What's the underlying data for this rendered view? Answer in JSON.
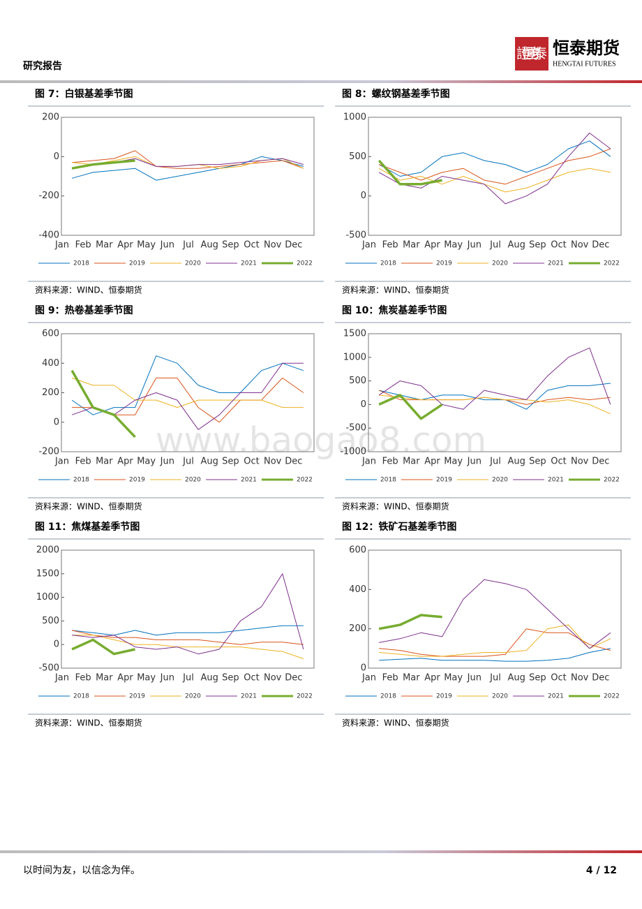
{
  "header": {
    "title": "研究报告",
    "logo_seal": "證恒券泰",
    "logo_name": "恒泰期货",
    "logo_en": "HENGTAI FUTURES"
  },
  "watermark": "www.baogao8.com",
  "chart_data": [
    {
      "type": "line",
      "title": "图 7：白银基差季节图",
      "source": "资料来源：WIND、恒泰期货",
      "categories": [
        "Jan",
        "Feb",
        "Mar",
        "Apr",
        "May",
        "Jun",
        "Jul",
        "Aug",
        "Sep",
        "Oct",
        "Nov",
        "Dec"
      ],
      "ylim": [
        -400,
        200
      ],
      "yticks": [
        -400,
        -200,
        0,
        200
      ],
      "series": [
        {
          "name": "2018",
          "color": "#0072bd",
          "values": [
            -110,
            -80,
            -70,
            -60,
            -120,
            -100,
            -80,
            -60,
            -40,
            0,
            -20,
            -50
          ]
        },
        {
          "name": "2019",
          "color": "#d95319",
          "values": [
            -30,
            -20,
            -10,
            30,
            -50,
            -60,
            -60,
            -50,
            -40,
            -30,
            -20,
            -60
          ]
        },
        {
          "name": "2020",
          "color": "#edb120",
          "values": [
            -30,
            -40,
            -20,
            0,
            -50,
            -50,
            -40,
            -60,
            -50,
            -20,
            -10,
            -60
          ]
        },
        {
          "name": "2021",
          "color": "#7e2f8e",
          "values": [
            -60,
            -40,
            -30,
            -10,
            -50,
            -50,
            -40,
            -40,
            -30,
            -20,
            -10,
            -40
          ]
        },
        {
          "name": "2022",
          "color": "#77ac30",
          "values": [
            -60,
            -40,
            -30,
            -20,
            null,
            null,
            null,
            null,
            null,
            null,
            null,
            null
          ]
        }
      ]
    },
    {
      "type": "line",
      "title": "图 8：螺纹钢基差季节图",
      "source": "资料来源：WIND、恒泰期货",
      "categories": [
        "Jan",
        "Feb",
        "Mar",
        "Apr",
        "May",
        "Jun",
        "Jul",
        "Aug",
        "Sep",
        "Oct",
        "Nov",
        "Dec"
      ],
      "ylim": [
        -500,
        1000
      ],
      "yticks": [
        -500,
        0,
        500,
        1000
      ],
      "series": [
        {
          "name": "2018",
          "color": "#0072bd",
          "values": [
            400,
            250,
            300,
            500,
            550,
            450,
            400,
            300,
            400,
            600,
            700,
            500
          ]
        },
        {
          "name": "2019",
          "color": "#d95319",
          "values": [
            400,
            300,
            200,
            300,
            350,
            200,
            150,
            250,
            350,
            450,
            500,
            600
          ]
        },
        {
          "name": "2020",
          "color": "#edb120",
          "values": [
            350,
            200,
            250,
            150,
            250,
            150,
            50,
            100,
            200,
            300,
            350,
            300
          ]
        },
        {
          "name": "2021",
          "color": "#7e2f8e",
          "values": [
            300,
            150,
            100,
            250,
            200,
            150,
            -100,
            0,
            150,
            500,
            800,
            600
          ]
        },
        {
          "name": "2022",
          "color": "#77ac30",
          "values": [
            450,
            150,
            150,
            200,
            null,
            null,
            null,
            null,
            null,
            null,
            null,
            null
          ]
        }
      ]
    },
    {
      "type": "line",
      "title": "图 9：热卷基差季节图",
      "source": "资料来源：WIND、恒泰期货",
      "categories": [
        "Jan",
        "Feb",
        "Mar",
        "Apr",
        "May",
        "Jun",
        "Jul",
        "Aug",
        "Sep",
        "Oct",
        "Nov",
        "Dec"
      ],
      "ylim": [
        -200,
        600
      ],
      "yticks": [
        -200,
        0,
        200,
        400,
        600
      ],
      "series": [
        {
          "name": "2018",
          "color": "#0072bd",
          "values": [
            150,
            50,
            100,
            100,
            450,
            400,
            250,
            200,
            200,
            350,
            400,
            350
          ]
        },
        {
          "name": "2019",
          "color": "#d95319",
          "values": [
            100,
            100,
            50,
            50,
            300,
            300,
            100,
            0,
            150,
            150,
            300,
            200
          ]
        },
        {
          "name": "2020",
          "color": "#edb120",
          "values": [
            300,
            250,
            250,
            150,
            150,
            100,
            150,
            150,
            150,
            150,
            100,
            100
          ]
        },
        {
          "name": "2021",
          "color": "#7e2f8e",
          "values": [
            50,
            100,
            50,
            150,
            200,
            150,
            -50,
            50,
            200,
            200,
            400,
            400
          ]
        },
        {
          "name": "2022",
          "color": "#77ac30",
          "values": [
            350,
            100,
            50,
            -100,
            null,
            null,
            null,
            null,
            null,
            null,
            null,
            null
          ]
        }
      ]
    },
    {
      "type": "line",
      "title": "图 10：焦炭基差季节图",
      "source": "资料来源：WIND、恒泰期货",
      "categories": [
        "Jan",
        "Feb",
        "Mar",
        "Apr",
        "May",
        "Jun",
        "Jul",
        "Aug",
        "Sep",
        "Oct",
        "Nov",
        "Dec"
      ],
      "ylim": [
        -1000,
        1500
      ],
      "yticks": [
        -1000,
        -500,
        0,
        500,
        1000,
        1500
      ],
      "series": [
        {
          "name": "2018",
          "color": "#0072bd",
          "values": [
            300,
            200,
            100,
            200,
            200,
            100,
            100,
            -100,
            300,
            400,
            400,
            450
          ]
        },
        {
          "name": "2019",
          "color": "#d95319",
          "values": [
            300,
            100,
            100,
            100,
            100,
            150,
            100,
            0,
            100,
            150,
            100,
            150
          ]
        },
        {
          "name": "2020",
          "color": "#edb120",
          "values": [
            200,
            150,
            100,
            100,
            100,
            150,
            100,
            100,
            50,
            100,
            0,
            -200
          ]
        },
        {
          "name": "2021",
          "color": "#7e2f8e",
          "values": [
            200,
            500,
            400,
            0,
            -100,
            300,
            200,
            100,
            600,
            1000,
            1200,
            0
          ]
        },
        {
          "name": "2022",
          "color": "#77ac30",
          "values": [
            0,
            200,
            -300,
            0,
            null,
            null,
            null,
            null,
            null,
            null,
            null,
            null
          ]
        }
      ]
    },
    {
      "type": "line",
      "title": "图 11：焦煤基差季节图",
      "source": "资料来源：WIND、恒泰期货",
      "categories": [
        "Jan",
        "Feb",
        "Mar",
        "Apr",
        "May",
        "Jun",
        "Jul",
        "Aug",
        "Sep",
        "Oct",
        "Nov",
        "Dec"
      ],
      "ylim": [
        -500,
        2000
      ],
      "yticks": [
        -500,
        0,
        500,
        1000,
        1500,
        2000
      ],
      "series": [
        {
          "name": "2018",
          "color": "#0072bd",
          "values": [
            300,
            250,
            200,
            300,
            200,
            250,
            250,
            250,
            300,
            350,
            400,
            400
          ]
        },
        {
          "name": "2019",
          "color": "#d95319",
          "values": [
            300,
            200,
            150,
            150,
            100,
            100,
            100,
            50,
            0,
            50,
            50,
            0
          ]
        },
        {
          "name": "2020",
          "color": "#edb120",
          "values": [
            200,
            200,
            100,
            0,
            0,
            -50,
            -50,
            -50,
            -50,
            -100,
            -150,
            -300
          ]
        },
        {
          "name": "2021",
          "color": "#7e2f8e",
          "values": [
            200,
            150,
            200,
            -50,
            -100,
            -50,
            -200,
            -100,
            500,
            800,
            1500,
            -100
          ]
        },
        {
          "name": "2022",
          "color": "#77ac30",
          "values": [
            -100,
            100,
            -200,
            -100,
            null,
            null,
            null,
            null,
            null,
            null,
            null,
            null
          ]
        }
      ]
    },
    {
      "type": "line",
      "title": "图 12：铁矿石基差季节图",
      "source": "资料来源：WIND、恒泰期货",
      "categories": [
        "Jan",
        "Feb",
        "Mar",
        "Apr",
        "May",
        "Jun",
        "Jul",
        "Aug",
        "Sep",
        "Oct",
        "Nov",
        "Dec"
      ],
      "ylim": [
        0,
        600
      ],
      "yticks": [
        0,
        200,
        400,
        600
      ],
      "series": [
        {
          "name": "2018",
          "color": "#0072bd",
          "values": [
            40,
            45,
            50,
            40,
            40,
            40,
            35,
            35,
            40,
            50,
            80,
            100
          ]
        },
        {
          "name": "2019",
          "color": "#d95319",
          "values": [
            100,
            90,
            70,
            60,
            60,
            60,
            70,
            200,
            180,
            180,
            120,
            90
          ]
        },
        {
          "name": "2020",
          "color": "#edb120",
          "values": [
            80,
            70,
            60,
            60,
            70,
            80,
            80,
            90,
            200,
            220,
            100,
            150
          ]
        },
        {
          "name": "2021",
          "color": "#7e2f8e",
          "values": [
            130,
            150,
            180,
            160,
            350,
            450,
            430,
            400,
            300,
            200,
            100,
            180
          ]
        },
        {
          "name": "2022",
          "color": "#77ac30",
          "values": [
            200,
            220,
            270,
            260,
            null,
            null,
            null,
            null,
            null,
            null,
            null,
            null
          ]
        }
      ]
    }
  ],
  "footer": {
    "motto": "以时间为友，以信念为伴。",
    "page": "4 / 12"
  }
}
